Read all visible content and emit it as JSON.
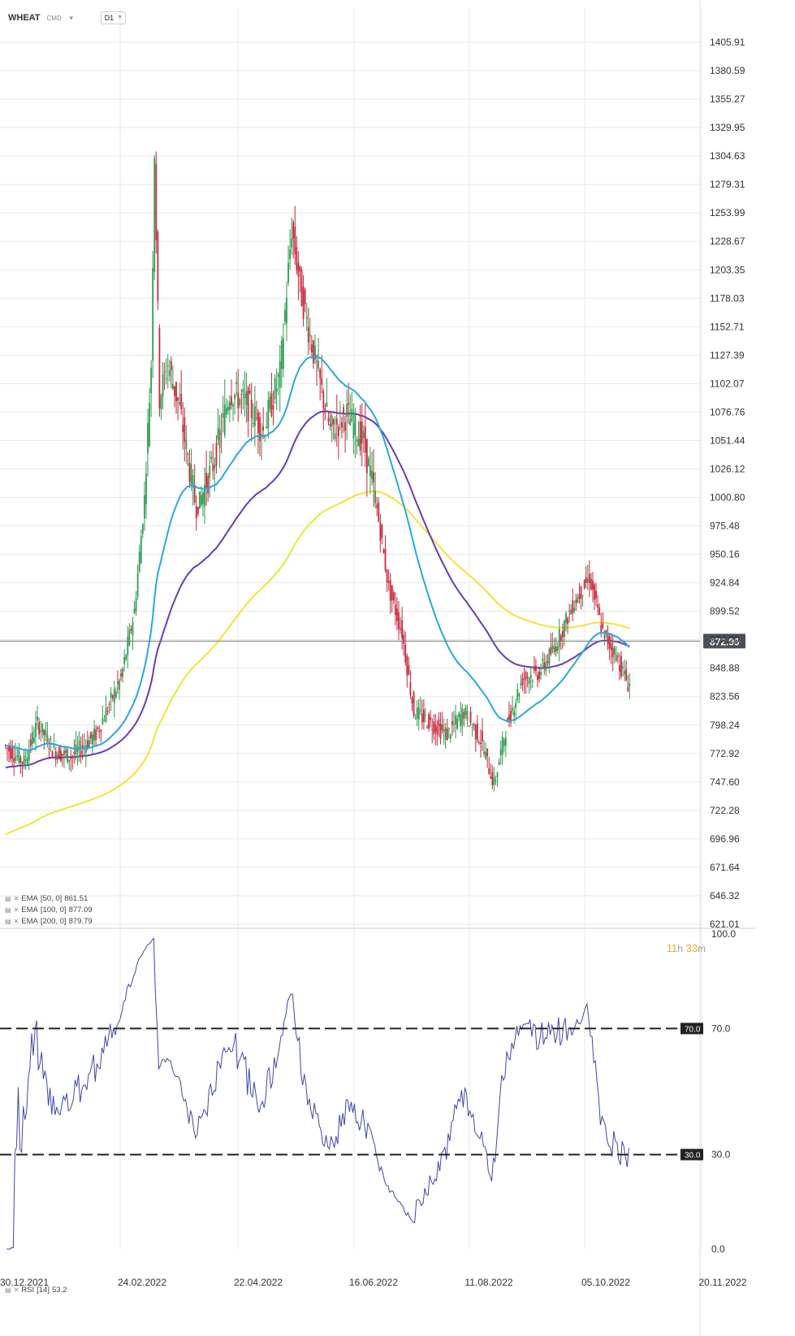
{
  "header": {
    "symbol": "WHEAT",
    "exchange": "CMD",
    "timeframe": "D1"
  },
  "timer": {
    "hours": "11",
    "h_unit": "h",
    "minutes": "33",
    "m_unit": "m"
  },
  "indicators": [
    {
      "label": "EMA",
      "params": "[50, 0]",
      "value": "861.51",
      "color": "#29a8e0"
    },
    {
      "label": "EMA",
      "params": "[100, 0]",
      "value": "877.09",
      "color": "#6a3ab8"
    },
    {
      "label": "EMA",
      "params": "[200, 0]",
      "value": "879.79",
      "color": "#f2e33a"
    }
  ],
  "rsi_legend": {
    "label": "RSI",
    "params": "[14]",
    "value": "53.2"
  },
  "colors": {
    "up": "#2e9d4f",
    "down": "#c8283c",
    "rsi": "#3c4aa8",
    "grid": "#eaeaea"
  },
  "chart_data": {
    "type": "candlestick",
    "price_axis_ticks": [
      "1405.91",
      "1380.59",
      "1355.27",
      "1329.95",
      "1304.63",
      "1279.31",
      "1253.99",
      "1228.67",
      "1203.35",
      "1178.03",
      "1152.71",
      "1127.39",
      "1102.07",
      "1076.76",
      "1051.44",
      "1026.12",
      "1000.80",
      "975.48",
      "950.16",
      "924.84",
      "899.52",
      "874.20",
      "848.88",
      "823.56",
      "798.24",
      "772.92",
      "747.60",
      "722.28",
      "696.96",
      "671.64",
      "646.32",
      "621.01"
    ],
    "ylim": [
      621.01,
      1405.91
    ],
    "current_price": "872.99",
    "x_ticks": [
      "30.12.2021",
      "24.02.2022",
      "22.04.2022",
      "16.06.2022",
      "11.08.2022",
      "05.10.2022",
      "20.11.2022"
    ],
    "rsi_axis_ticks": [
      "100.0",
      "70.0",
      "30.0",
      "0.0"
    ],
    "rsi_levels": [
      "70.0",
      "30.0"
    ],
    "rsi_ylim": [
      0,
      100
    ]
  }
}
